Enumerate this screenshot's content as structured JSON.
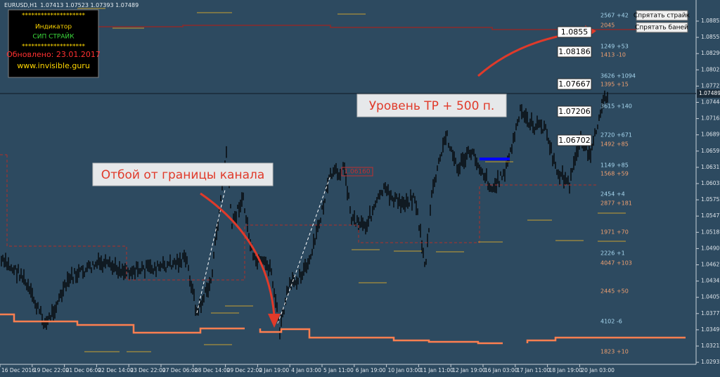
{
  "header": {
    "symbol": "EURUSD,H1",
    "ohlc": "1.07413 1.07523 1.07393 1.07489"
  },
  "info_box": {
    "stars_top": "********************",
    "lines": [
      "Индикатор",
      "СИП  СТРАЙК",
      "Обновлено: 23.01.2017",
      "www.invisible.guru"
    ],
    "stars_bottom": "********************"
  },
  "buttons": [
    "Спрятать страйк",
    "Спрятать баней"
  ],
  "annotations": [
    "Уровень TP + 500 п.",
    "Отбой от границы канала"
  ],
  "price_axis": {
    "labels": [
      "1.08852",
      "1.08557",
      "1.08290",
      "1.08025",
      "1.07727",
      "1.07444",
      "1.07162",
      "1.06897",
      "1.06597",
      "1.06317",
      "1.06032",
      "1.05752",
      "1.05477",
      "1.05187",
      "1.04907",
      "1.04627",
      "1.04342",
      "1.04057",
      "1.03777",
      "1.03497",
      "1.03212",
      "1.02932"
    ],
    "current": "1.07489"
  },
  "time_axis": [
    "16 Dec 2016",
    "19 Dec 22:00",
    "21 Dec 06:00",
    "22 Dec 14:00",
    "23 Dec 22:00",
    "27 Dec 06:00",
    "28 Dec 14:00",
    "29 Dec 22:00",
    "2 Jan 19:00",
    "4 Jan 03:00",
    "5 Jan 11:00",
    "6 Jan 19:00",
    "10 Jan 03:00",
    "11 Jan 11:00",
    "12 Jan 19:00",
    "16 Jan 03:00",
    "17 Jan 11:00",
    "18 Jan 19:00",
    "20 Jan 03:00"
  ],
  "price_boxes": [
    "1.0855",
    "1.08186",
    "1.07667",
    "1.07206",
    "1.06702"
  ],
  "small_price_box": "1.06160",
  "level_labels": [
    "2567 +42",
    "2045",
    "1249 +53",
    "1413 -10",
    "3626 +1094",
    "1395 +15",
    "3615 +140",
    "2720 +671",
    "1492 +85",
    "1149 +85",
    "1568 +59",
    "2454 +4",
    "2877 +181",
    "1971 +70",
    "2226 +1",
    "4047 +103",
    "2445 +50",
    "4102 -6",
    "1823 +10"
  ]
}
